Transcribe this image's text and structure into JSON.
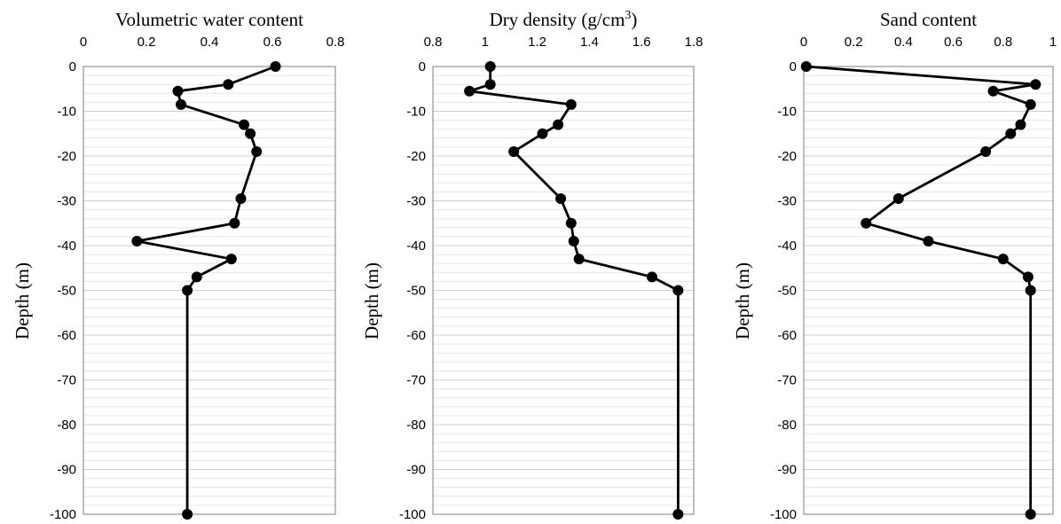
{
  "chart_data": [
    {
      "type": "line",
      "title": "Volumetric water content",
      "ylabel": "Depth (m)",
      "xlim": [
        0,
        0.8
      ],
      "xticks": [
        0,
        0.2,
        0.4,
        0.6,
        0.8
      ],
      "xtick_labels": [
        "0",
        "0.2",
        "0.4",
        "0.6",
        "0.8"
      ],
      "ylim": [
        -100,
        0
      ],
      "yticks": [
        0,
        -10,
        -20,
        -30,
        -40,
        -50,
        -60,
        -70,
        -80,
        -90,
        -100
      ],
      "ytick_labels": [
        "0",
        "-10",
        "-20",
        "-30",
        "-40",
        "-50",
        "-60",
        "-70",
        "-80",
        "-90",
        "-100"
      ],
      "grid": true,
      "series": [
        {
          "x": [
            0.61,
            0.46,
            0.3,
            0.31,
            0.51,
            0.53,
            0.55,
            0.5,
            0.48,
            0.17,
            0.47,
            0.36,
            0.33,
            0.33
          ],
          "y": [
            0,
            -4,
            -5.5,
            -8.5,
            -13,
            -15,
            -19,
            -29.5,
            -35,
            -39,
            -43,
            -47,
            -50,
            -100
          ]
        }
      ]
    },
    {
      "type": "line",
      "title": "Dry density (g/cm³)",
      "title_main": "Dry density (g/cm",
      "title_sup": "3",
      "title_end": ")",
      "ylabel": "Depth (m)",
      "xlim": [
        0.8,
        1.8
      ],
      "xticks": [
        0.8,
        1.0,
        1.2,
        1.4,
        1.6,
        1.8
      ],
      "xtick_labels": [
        "0.8",
        "1",
        "1.2",
        "1.4",
        "1.6",
        "1.8"
      ],
      "ylim": [
        -100,
        0
      ],
      "yticks": [
        0,
        -10,
        -20,
        -30,
        -40,
        -50,
        -60,
        -70,
        -80,
        -90,
        -100
      ],
      "ytick_labels": [
        "0",
        "-10",
        "-20",
        "-30",
        "-40",
        "-50",
        "-60",
        "-70",
        "-80",
        "-90",
        "-100"
      ],
      "grid": true,
      "series": [
        {
          "x": [
            1.02,
            1.02,
            0.94,
            1.33,
            1.28,
            1.22,
            1.11,
            1.29,
            1.33,
            1.34,
            1.36,
            1.64,
            1.74,
            1.74
          ],
          "y": [
            0,
            -4,
            -5.5,
            -8.5,
            -13,
            -15,
            -19,
            -29.5,
            -35,
            -39,
            -43,
            -47,
            -50,
            -100
          ]
        }
      ]
    },
    {
      "type": "line",
      "title": "Sand content",
      "ylabel": "Depth (m)",
      "xlim": [
        0,
        1
      ],
      "xticks": [
        0,
        0.2,
        0.4,
        0.6,
        0.8,
        1
      ],
      "xtick_labels": [
        "0",
        "0.2",
        "0.4",
        "0.6",
        "0.8",
        "1"
      ],
      "ylim": [
        -100,
        0
      ],
      "yticks": [
        0,
        -10,
        -20,
        -30,
        -40,
        -50,
        -60,
        -70,
        -80,
        -90,
        -100
      ],
      "ytick_labels": [
        "0",
        "-10",
        "-20",
        "-30",
        "-40",
        "-50",
        "-60",
        "-70",
        "-80",
        "-90",
        "-100"
      ],
      "grid": true,
      "series": [
        {
          "x": [
            0.01,
            0.93,
            0.76,
            0.91,
            0.87,
            0.83,
            0.73,
            0.38,
            0.25,
            0.5,
            0.8,
            0.9,
            0.91,
            0.91
          ],
          "y": [
            0,
            -4,
            -5.5,
            -8.5,
            -13,
            -15,
            -19,
            -29.5,
            -35,
            -39,
            -43,
            -47,
            -50,
            -100
          ]
        }
      ]
    }
  ]
}
